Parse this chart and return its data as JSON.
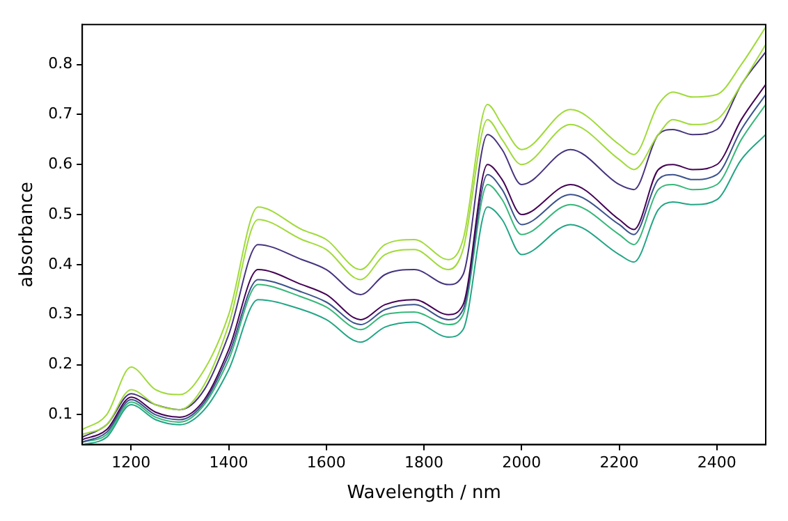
{
  "chart_data": {
    "type": "line",
    "xlabel": "Wavelength / nm",
    "ylabel": "absorbance",
    "x": [
      1100,
      1150,
      1200,
      1250,
      1300,
      1350,
      1400,
      1460,
      1550,
      1600,
      1670,
      1720,
      1780,
      1850,
      1880,
      1930,
      1960,
      2000,
      2100,
      2200,
      2230,
      2280,
      2310,
      2350,
      2400,
      2450,
      2500
    ],
    "series": [
      {
        "color": "#a0da39",
        "values": [
          0.07,
          0.1,
          0.195,
          0.15,
          0.14,
          0.19,
          0.3,
          0.515,
          0.47,
          0.45,
          0.39,
          0.44,
          0.45,
          0.41,
          0.45,
          0.72,
          0.68,
          0.63,
          0.71,
          0.64,
          0.62,
          0.72,
          0.745,
          0.735,
          0.74,
          0.8,
          0.875
        ]
      },
      {
        "color": "#a0da39",
        "values": [
          0.06,
          0.08,
          0.15,
          0.12,
          0.11,
          0.16,
          0.28,
          0.49,
          0.45,
          0.43,
          0.37,
          0.42,
          0.43,
          0.39,
          0.43,
          0.69,
          0.65,
          0.6,
          0.68,
          0.61,
          0.59,
          0.66,
          0.69,
          0.68,
          0.69,
          0.76,
          0.84
        ]
      },
      {
        "color": "#46337e",
        "values": [
          0.055,
          0.08,
          0.142,
          0.12,
          0.11,
          0.15,
          0.26,
          0.44,
          0.41,
          0.39,
          0.34,
          0.38,
          0.39,
          0.36,
          0.38,
          0.66,
          0.63,
          0.56,
          0.63,
          0.56,
          0.55,
          0.66,
          0.67,
          0.66,
          0.67,
          0.76,
          0.825
        ]
      },
      {
        "color": "#440154",
        "values": [
          0.05,
          0.07,
          0.135,
          0.105,
          0.095,
          0.13,
          0.23,
          0.39,
          0.36,
          0.34,
          0.29,
          0.32,
          0.33,
          0.3,
          0.32,
          0.6,
          0.57,
          0.5,
          0.56,
          0.49,
          0.47,
          0.59,
          0.6,
          0.59,
          0.6,
          0.69,
          0.76
        ]
      },
      {
        "color": "#3b528b",
        "values": [
          0.045,
          0.065,
          0.13,
          0.1,
          0.09,
          0.125,
          0.22,
          0.37,
          0.345,
          0.325,
          0.28,
          0.31,
          0.32,
          0.29,
          0.31,
          0.58,
          0.55,
          0.48,
          0.54,
          0.48,
          0.46,
          0.57,
          0.58,
          0.57,
          0.58,
          0.67,
          0.74
        ]
      },
      {
        "color": "#35b779",
        "values": [
          0.045,
          0.06,
          0.125,
          0.095,
          0.085,
          0.12,
          0.21,
          0.36,
          0.335,
          0.315,
          0.27,
          0.3,
          0.305,
          0.28,
          0.3,
          0.56,
          0.53,
          0.46,
          0.52,
          0.46,
          0.44,
          0.55,
          0.56,
          0.55,
          0.56,
          0.65,
          0.72
        ]
      },
      {
        "color": "#21a585",
        "values": [
          0.04,
          0.055,
          0.12,
          0.09,
          0.08,
          0.11,
          0.19,
          0.33,
          0.31,
          0.29,
          0.245,
          0.275,
          0.285,
          0.255,
          0.27,
          0.515,
          0.49,
          0.42,
          0.48,
          0.42,
          0.405,
          0.51,
          0.525,
          0.52,
          0.53,
          0.61,
          0.66
        ]
      }
    ],
    "xlim": [
      1100,
      2500
    ],
    "xticks": [
      1200,
      1400,
      1600,
      1800,
      2000,
      2200,
      2400
    ],
    "ylim": [
      0.04,
      0.88
    ],
    "yticks": [
      0.1,
      0.2,
      0.3,
      0.4,
      0.5,
      0.6,
      0.7,
      0.8
    ],
    "grid": false,
    "legend": false,
    "marker": "none",
    "line_style": "solid"
  }
}
